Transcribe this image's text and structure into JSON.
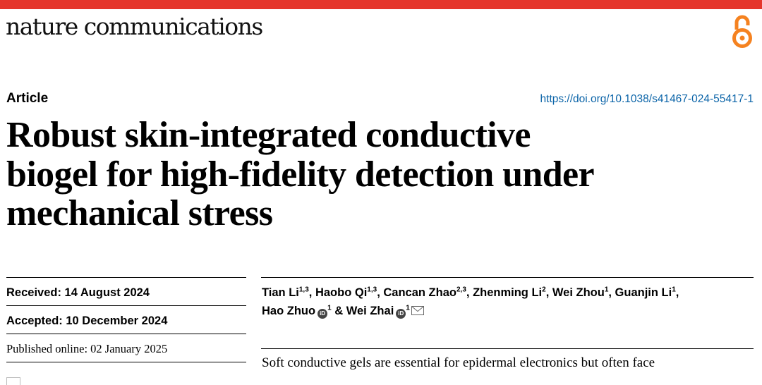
{
  "header": {
    "journal": "nature communications",
    "accent_color": "#e5352b",
    "open_access_icon": "open-access-icon",
    "open_access_color": "#f58220"
  },
  "article": {
    "type": "Article",
    "doi": "https://doi.org/10.1038/s41467-024-55417-1",
    "title_lines": [
      "Robust skin-integrated conductive",
      "biogel for high-fidelity detection under",
      "mechanical stress"
    ]
  },
  "dates": {
    "received": "Received: 14 August 2024",
    "accepted": "Accepted: 10 December 2024",
    "published": "Published online: 02 January 2025"
  },
  "authors": [
    {
      "name": "Tian Li",
      "aff": "1,3",
      "sep": ", "
    },
    {
      "name": "Haobo Qi",
      "aff": "1,3",
      "sep": ", "
    },
    {
      "name": "Cancan Zhao",
      "aff": "2,3",
      "sep": ", "
    },
    {
      "name": "Zhenming Li",
      "aff": "2",
      "sep": ", "
    },
    {
      "name": "Wei Zhou",
      "aff": "1",
      "sep": ", "
    },
    {
      "name": "Guanjin Li",
      "aff": "1",
      "sep": ","
    },
    {
      "name": "Hao Zhuo",
      "aff": "1",
      "orcid": true,
      "sep": " & "
    },
    {
      "name": "Wei Zhai",
      "aff": "1",
      "orcid": true,
      "email": true,
      "sep": ""
    }
  ],
  "abstract_first_line": "Soft conductive gels are essential for epidermal electronics but often face"
}
